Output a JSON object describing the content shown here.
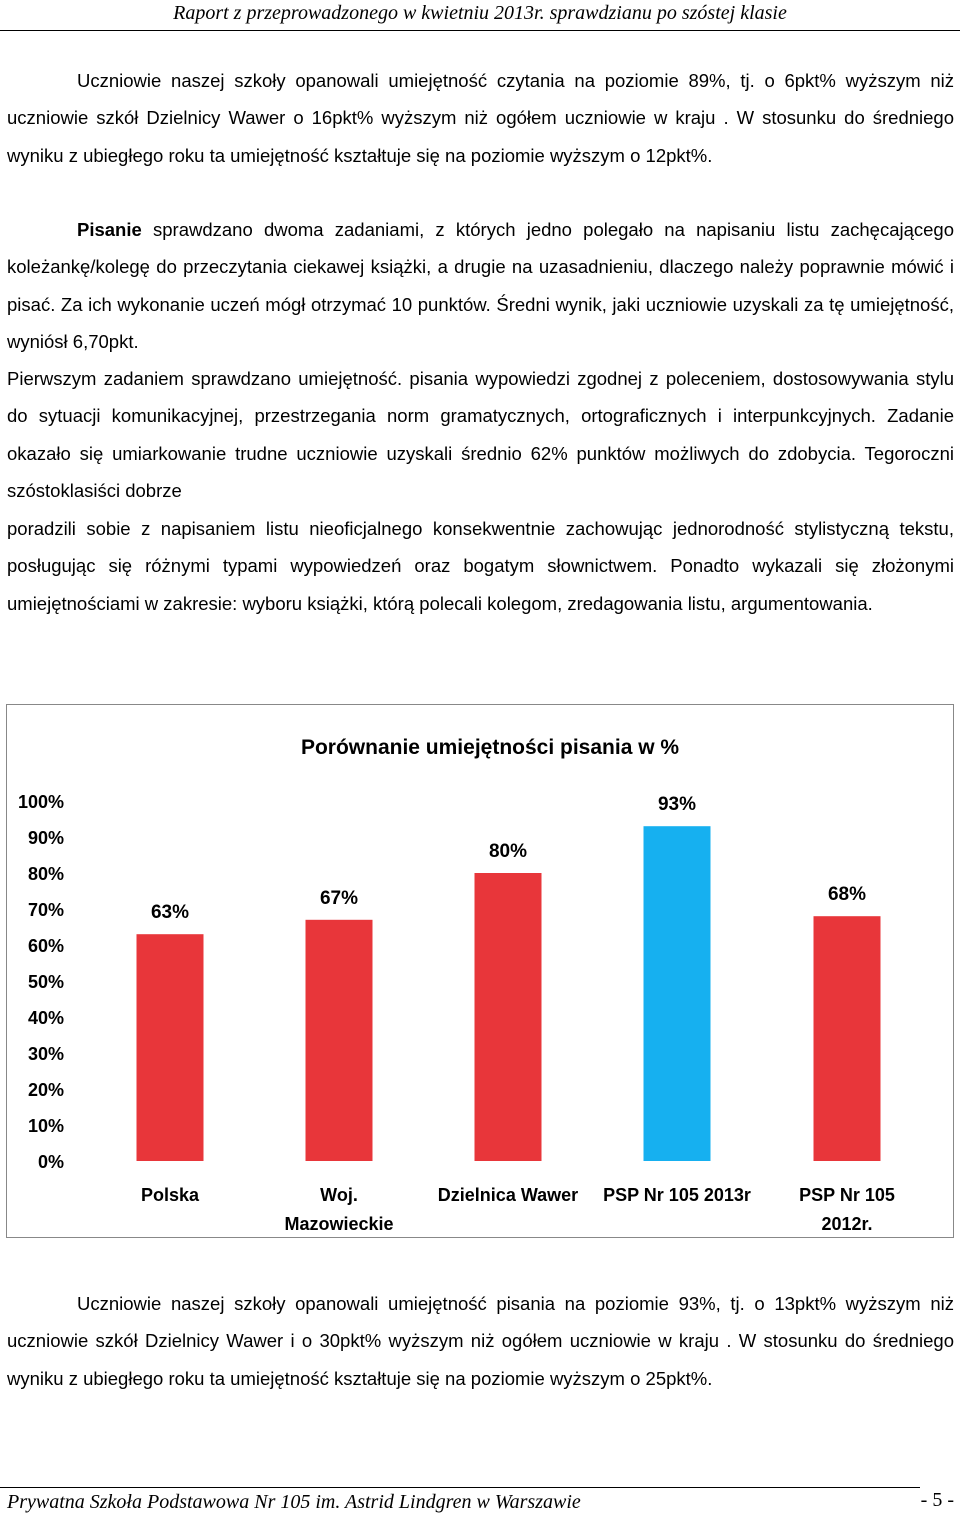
{
  "header": {
    "text": "Raport z przeprowadzonego w kwietniu 2013r. sprawdzianu po szóstej klasie"
  },
  "paragraphs": {
    "reading_summary": "Uczniowie naszej szkoły opanowali umiejętność czytania na poziomie 89%, tj. o 6pkt% wyższym niż uczniowie szkół Dzielnicy Wawer o 16pkt% wyższym niż ogółem uczniowie w kraju . W stosunku do średniego wyniku z ubiegłego roku ta umiejętność kształtuje się na poziomie wyższym o 12pkt%.",
    "writing_term": "Pisanie",
    "writing_intro": " sprawdzano dwoma zadaniami, z których jedno polegało na napisaniu listu zachęcającego koleżankę/kolegę do przeczytania ciekawej książki, a drugie na uzasadnieniu, dlaczego należy poprawnie mówić i pisać. Za ich wykonanie uczeń mógł otrzymać 10 punktów. Średni wynik, jaki uczniowie uzyskali za tę umiejętność, wyniósł 6,70pkt.",
    "writing_detail": "Pierwszym zadaniem sprawdzano umiejętność. pisania wypowiedzi zgodnej z poleceniem, dostosowywania stylu do sytuacji komunikacyjnej, przestrzegania norm gramatycznych, ortograficznych i interpunkcyjnych. Zadanie okazało się umiarkowanie trudne uczniowie uzyskali średnio 62% punktów możliwych do zdobycia. Tegoroczni szóstoklasiści dobrze",
    "writing_detail2": "poradzili sobie z napisaniem listu nieoficjalnego konsekwentnie zachowując jednorodność stylistyczną tekstu, posługując się różnymi typami wypowiedzeń oraz bogatym słownictwem. Ponadto wykazali się złożonymi umiejętnościami w zakresie: wyboru książki, którą polecali kolegom, zredagowania listu, argumentowania.",
    "writing_summary": "Uczniowie naszej szkoły opanowali umiejętność pisania na poziomie 93%, tj. o 13pkt% wyższym niż uczniowie szkół Dzielnicy Wawer i o 30pkt% wyższym niż ogółem uczniowie w kraju . W stosunku do średniego wyniku z ubiegłego roku ta umiejętność kształtuje się na poziomie wyższym o 25pkt%."
  },
  "chart_data": {
    "type": "bar",
    "title": "Porównanie umiejętności pisania w %",
    "categories": [
      [
        "Polska"
      ],
      [
        "Woj.",
        "Mazowieckie"
      ],
      [
        "Dzielnica Wawer"
      ],
      [
        "PSP Nr 105 2013r"
      ],
      [
        "PSP Nr 105",
        "2012r."
      ]
    ],
    "values": [
      63,
      67,
      80,
      93,
      68
    ],
    "data_labels": [
      "63%",
      "67%",
      "80%",
      "93%",
      "68%"
    ],
    "colors": [
      "#e8363a",
      "#e8363a",
      "#e8363a",
      "#16b0f0",
      "#e8363a"
    ],
    "ylim": [
      0,
      100
    ],
    "yticks": [
      "0%",
      "10%",
      "20%",
      "30%",
      "40%",
      "50%",
      "60%",
      "70%",
      "80%",
      "90%",
      "100%"
    ],
    "grid": false,
    "legend": "none"
  },
  "footer": {
    "school": "Prywatna Szkoła Podstawowa Nr 105 im. Astrid Lindgren w Warszawie",
    "page": "- 5 -"
  }
}
